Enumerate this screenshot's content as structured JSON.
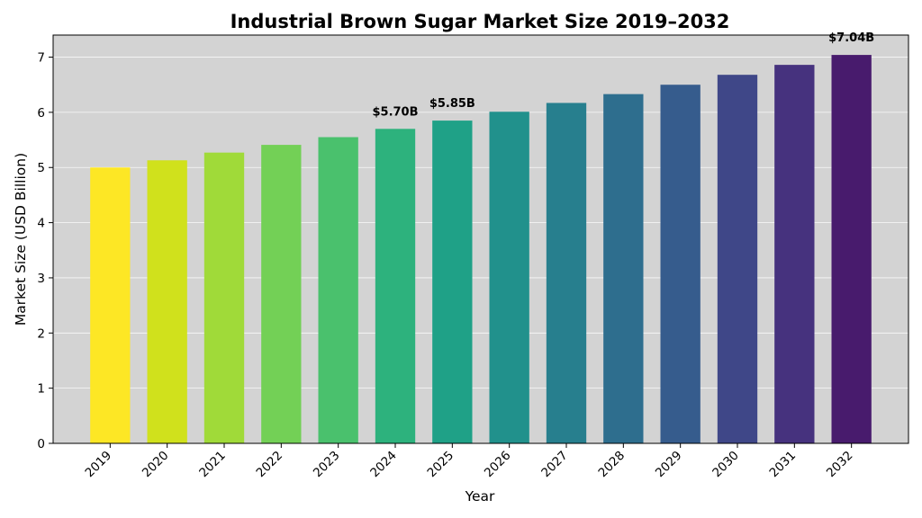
{
  "chart_data": {
    "type": "bar",
    "title": "Industrial Brown Sugar Market Size 2019–2032",
    "xlabel": "Year",
    "ylabel": "Market Size (USD Billion)",
    "categories": [
      "2019",
      "2020",
      "2021",
      "2022",
      "2023",
      "2024",
      "2025",
      "2026",
      "2027",
      "2028",
      "2029",
      "2030",
      "2031",
      "2032"
    ],
    "values": [
      5.0,
      5.13,
      5.27,
      5.41,
      5.55,
      5.7,
      5.85,
      6.01,
      6.17,
      6.33,
      6.5,
      6.68,
      6.86,
      7.04
    ],
    "ylim": [
      0,
      7.4
    ],
    "yticks": [
      0,
      1,
      2,
      3,
      4,
      5,
      6,
      7
    ],
    "grid": true,
    "background_color": "#d3d3d3",
    "bar_colors": [
      "#fde725",
      "#d0e11c",
      "#a0da39",
      "#73d056",
      "#4ac16d",
      "#2db27d",
      "#1fa187",
      "#21918c",
      "#277f8e",
      "#2e6e8e",
      "#365c8d",
      "#3f4788",
      "#46327e",
      "#481b6d"
    ],
    "data_labels": [
      {
        "index": 5,
        "text": "$5.70B"
      },
      {
        "index": 6,
        "text": "$5.85B"
      },
      {
        "index": 13,
        "text": "$7.04B"
      }
    ]
  }
}
